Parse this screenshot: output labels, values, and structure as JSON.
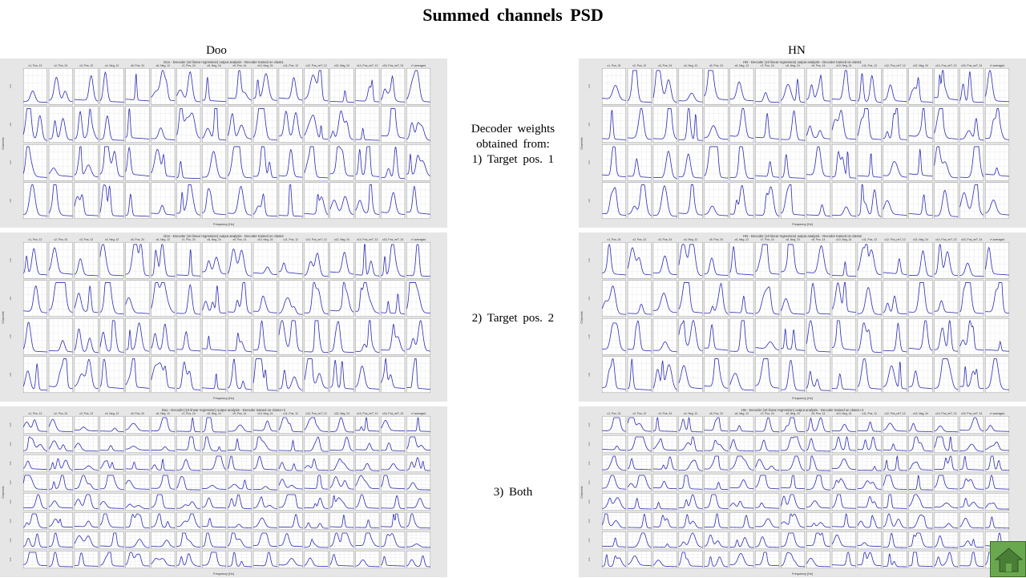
{
  "title": "Summed channels PSD",
  "columns": {
    "left": "Doo",
    "right": "HN"
  },
  "middle": {
    "intro_lines": [
      "Decoder weights",
      "obtained from:",
      "1) Target pos. 1"
    ],
    "row2": "2) Target pos. 2",
    "row3": "3) Both"
  },
  "figure_text": {
    "panels": [
      {
        "subject": "Doo",
        "title": "Doo - Decoder (10 linear regression) output analysis - Decoder trained on class1",
        "col_titles": [
          "c1, Pos, 12",
          "c2, Pos, 24",
          "c3, Pos, 12",
          "c4, Neg, 12",
          "c5, Pos, 24",
          "c6, Neg, 12",
          "c7, Pos, 24",
          "c8, Neg, 24",
          "c9, Pos, 14",
          "c10, Neg, 24",
          "c11, Pos, 12",
          "c12, Pos_neT, 12",
          "c13, Neg, 24",
          "c14, Pos_neT, 13",
          "c15, Pos_neT, 24",
          "c*-averaged"
        ]
      },
      {
        "subject": "HN",
        "title": "HN - Decoder (10 linear regression) output analysis - Decoder trained on class1",
        "col_titles": [
          "c1, Pos, 24",
          "c2, Pos, 12",
          "c3, Pos, 24",
          "c4, Neg, 12",
          "c5, Pos, 24",
          "c6, Neg, 12",
          "c7, Pos, 24",
          "c8, Neg, 24",
          "c9, Pos, 14",
          "c10, Neg, 24",
          "c11, Pos, 12",
          "c12, Pos_neT, 12",
          "c13, Neg, 24",
          "c14, Pos_neT, 13",
          "c15, Pos_neT, 24",
          "c*-averaged"
        ]
      },
      {
        "subject": "Doo",
        "title": "Doo - Decoder (10 linear regression) output analysis - Decoder trained on class2",
        "col_titles": [
          "c1, Pos, 12",
          "c2, Pos, 24",
          "c3, Pos, 12",
          "c4, Neg, 12",
          "c5, Pos, 24",
          "c6, Neg, 12",
          "c7, Pos, 24",
          "c8, Neg, 24",
          "c9, Pos, 14",
          "c10, Neg, 24",
          "c11, Pos, 12",
          "c12, Pos_neT, 12",
          "c13, Neg, 24",
          "c14, Pos_neT, 13",
          "c15, Pos_neT, 24",
          "c*-averaged"
        ]
      },
      {
        "subject": "HN",
        "title": "HN - Decoder (10 linear regression) output analysis - Decoder trained on class2",
        "col_titles": [
          "c1, Pos, 24",
          "c2, Pos, 12",
          "c3, Pos, 24",
          "c4, Neg, 12",
          "c5, Pos, 24",
          "c6, Neg, 12",
          "c7, Pos, 24",
          "c8, Neg, 24",
          "c9, Pos, 14",
          "c10, Neg, 24",
          "c11, Pos, 12",
          "c12, Pos_neT, 12",
          "c13, Neg, 24",
          "c14, Pos_neT, 13",
          "c15, Pos_neT, 24",
          "c*-averaged"
        ]
      },
      {
        "subject": "Doo",
        "title": "Doo - Decoder (10 linear regression) output analysis - Decoder trained on class1+2",
        "col_titles": [
          "c1, Pos, 12",
          "c2, Pos, 24",
          "c3, Pos, 12",
          "c4, Neg, 12",
          "c5, Pos, 24",
          "c6, Neg, 12",
          "c7, Pos, 24",
          "c8, Neg, 24",
          "c9, Pos, 14",
          "c10, Neg, 24",
          "c11, Pos, 12",
          "c12, Pos_neT, 12",
          "c13, Neg, 24",
          "c14, Pos_neT, 13",
          "c15, Pos_neT, 24",
          "c*-averaged"
        ]
      },
      {
        "subject": "HN",
        "title": "HN - Decoder (10 linear regression) output analysis - Decoder trained on class1+2",
        "col_titles": [
          "c1, Pos, 24",
          "c2, Pos, 12",
          "c3, Pos, 24",
          "c4, Neg, 12",
          "c5, Pos, 24",
          "c6, Neg, 12",
          "c7, Pos, 24",
          "c8, Neg, 24",
          "c9, Pos, 14",
          "c10, Neg, 24",
          "c11, Pos, 12",
          "c12, Pos_neT, 12",
          "c13, Neg, 24",
          "c14, Pos_neT, 13",
          "c15, Pos_neT, 24",
          "c*-averaged"
        ]
      }
    ],
    "xlabel": "Frequency [Hz]",
    "ylabel": "Channels"
  },
  "colors": {
    "trace": "#2b2bb5",
    "panel_bg": "#e6e6e6",
    "home_button": "#6aa84f"
  },
  "icons": {
    "home": "home-icon"
  }
}
